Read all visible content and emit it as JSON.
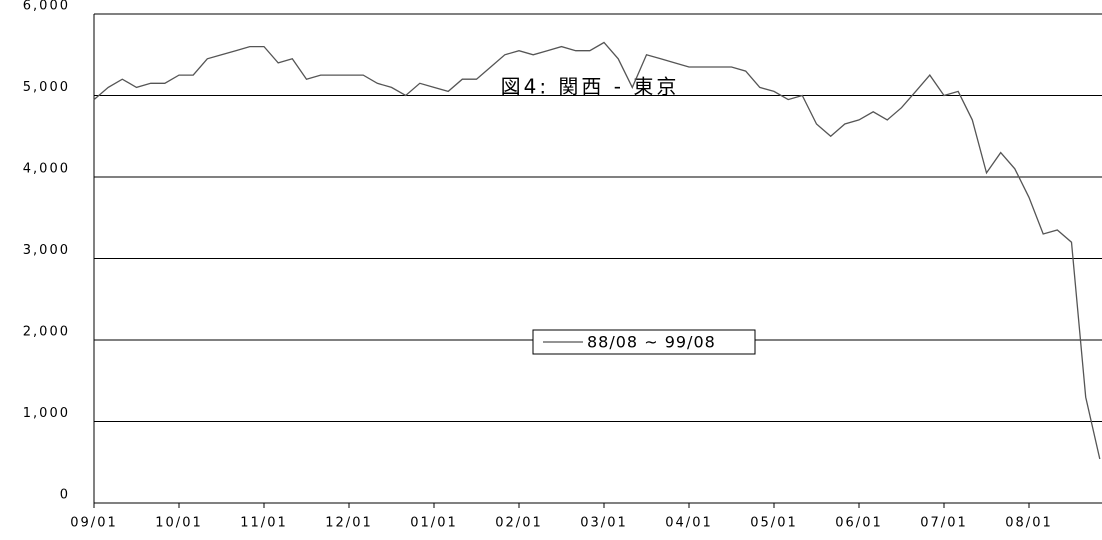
{
  "chart_data": {
    "type": "line",
    "title": "図4: 関西 - 東京",
    "categories": [
      "09/01",
      null,
      null,
      null,
      null,
      null,
      "10/01",
      null,
      null,
      null,
      null,
      null,
      "11/01",
      null,
      null,
      null,
      null,
      null,
      "12/01",
      null,
      null,
      null,
      null,
      null,
      "01/01",
      null,
      null,
      null,
      null,
      null,
      "02/01",
      null,
      null,
      null,
      null,
      null,
      "03/01",
      null,
      null,
      null,
      null,
      null,
      "04/01",
      null,
      null,
      null,
      null,
      null,
      "05/01",
      null,
      null,
      null,
      null,
      null,
      "06/01",
      null,
      null,
      null,
      null,
      null,
      "07/01",
      null,
      null,
      null,
      null,
      null,
      "08/01",
      null,
      null,
      null,
      null,
      null
    ],
    "series": [
      {
        "name": "88/08 ~ 99/08",
        "color": "#555555",
        "values": [
          4950,
          5100,
          5200,
          5100,
          5150,
          5150,
          5250,
          5250,
          5450,
          5500,
          5550,
          5600,
          5600,
          5400,
          5450,
          5200,
          5250,
          5250,
          5250,
          5250,
          5150,
          5100,
          5000,
          5150,
          5100,
          5050,
          5200,
          5200,
          5350,
          5500,
          5550,
          5500,
          5550,
          5600,
          5550,
          5550,
          5650,
          5450,
          5100,
          5500,
          5450,
          5400,
          5350,
          5350,
          5350,
          5350,
          5300,
          5100,
          5050,
          4950,
          5000,
          4650,
          4500,
          4650,
          4700,
          4800,
          4700,
          4850,
          5050,
          5250,
          5000,
          5050,
          4700,
          4050,
          4300,
          4100,
          3750,
          3300,
          3350,
          3200,
          1300,
          540
        ]
      }
    ],
    "ylim": [
      0,
      6000
    ],
    "yticks": [
      0,
      {
        "value": 1000,
        "label": "1,000"
      },
      {
        "value": 2000,
        "label": "2,000"
      },
      {
        "value": 3000,
        "label": "3,000"
      },
      {
        "value": 4000,
        "label": "4,000"
      },
      {
        "value": 5000,
        "label": "5,000"
      },
      {
        "value": 6000,
        "label": "6,000"
      }
    ],
    "grid": true
  }
}
